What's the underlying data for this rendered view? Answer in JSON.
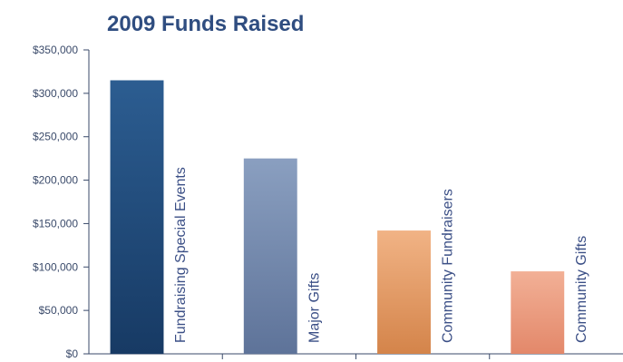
{
  "chart_data": {
    "type": "bar",
    "title": "2009 Funds Raised",
    "categories": [
      "Fundraising Special Events",
      "Major Gifts",
      "Community Fundraisers",
      "Community Gifts"
    ],
    "values": [
      315000,
      225000,
      142000,
      95000
    ],
    "ylim": [
      0,
      350000
    ],
    "yticks": [
      "$0",
      "$50,000",
      "$100,000",
      "$150,000",
      "$200,000",
      "$250,000",
      "$300,000",
      "$350,000"
    ],
    "ytick_values": [
      0,
      50000,
      100000,
      150000,
      200000,
      250000,
      300000,
      350000
    ],
    "xlabel": "",
    "ylabel": "",
    "grid": false,
    "colors": [
      "#173a64",
      "#5e7399",
      "#d4844a",
      "#e3886a"
    ],
    "colors_light": [
      "#2c5d91",
      "#8a9fc0",
      "#f1b385",
      "#f2b096"
    ],
    "axis_color": "#3a4a6a"
  }
}
